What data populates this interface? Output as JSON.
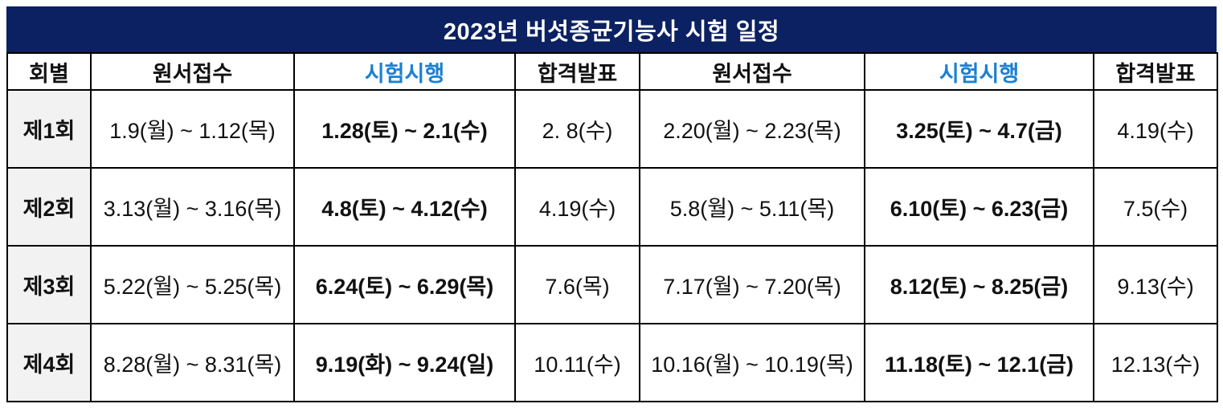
{
  "title": "2023년 버섯종균기능사 시험 일정",
  "colors": {
    "title_bar_bg": "#0b2161",
    "title_text": "#ffffff",
    "header_bg": "#d9e4f2",
    "row_label_bg": "#f2f2f2",
    "exam_text_blue": "#0b73ca",
    "header_exam_blue": "#1c80d2",
    "border": "#000000"
  },
  "table": {
    "headers": [
      "회별",
      "원서접수",
      "시험시행",
      "합격발표",
      "원서접수",
      "시험시행",
      "합격발표"
    ],
    "rows": [
      {
        "label": "제1회",
        "cells": [
          "1.9(월) ~ 1.12(목)",
          "1.28(토) ~ 2.1(수)",
          "2. 8(수)",
          "2.20(월) ~ 2.23(목)",
          "3.25(토) ~ 4.7(금)",
          "4.19(수)"
        ]
      },
      {
        "label": "제2회",
        "cells": [
          "3.13(월) ~ 3.16(목)",
          "4.8(토) ~ 4.12(수)",
          "4.19(수)",
          "5.8(월) ~ 5.11(목)",
          "6.10(토) ~ 6.23(금)",
          "7.5(수)"
        ]
      },
      {
        "label": "제3회",
        "cells": [
          "5.22(월) ~ 5.25(목)",
          "6.24(토) ~ 6.29(목)",
          "7.6(목)",
          "7.17(월) ~ 7.20(목)",
          "8.12(토) ~ 8.25(금)",
          "9.13(수)"
        ]
      },
      {
        "label": "제4회",
        "cells": [
          "8.28(월) ~ 8.31(목)",
          "9.19(화) ~ 9.24(일)",
          "10.11(수)",
          "10.16(월) ~ 10.19(목)",
          "11.18(토) ~ 12.1(금)",
          "12.13(수)"
        ]
      }
    ]
  }
}
